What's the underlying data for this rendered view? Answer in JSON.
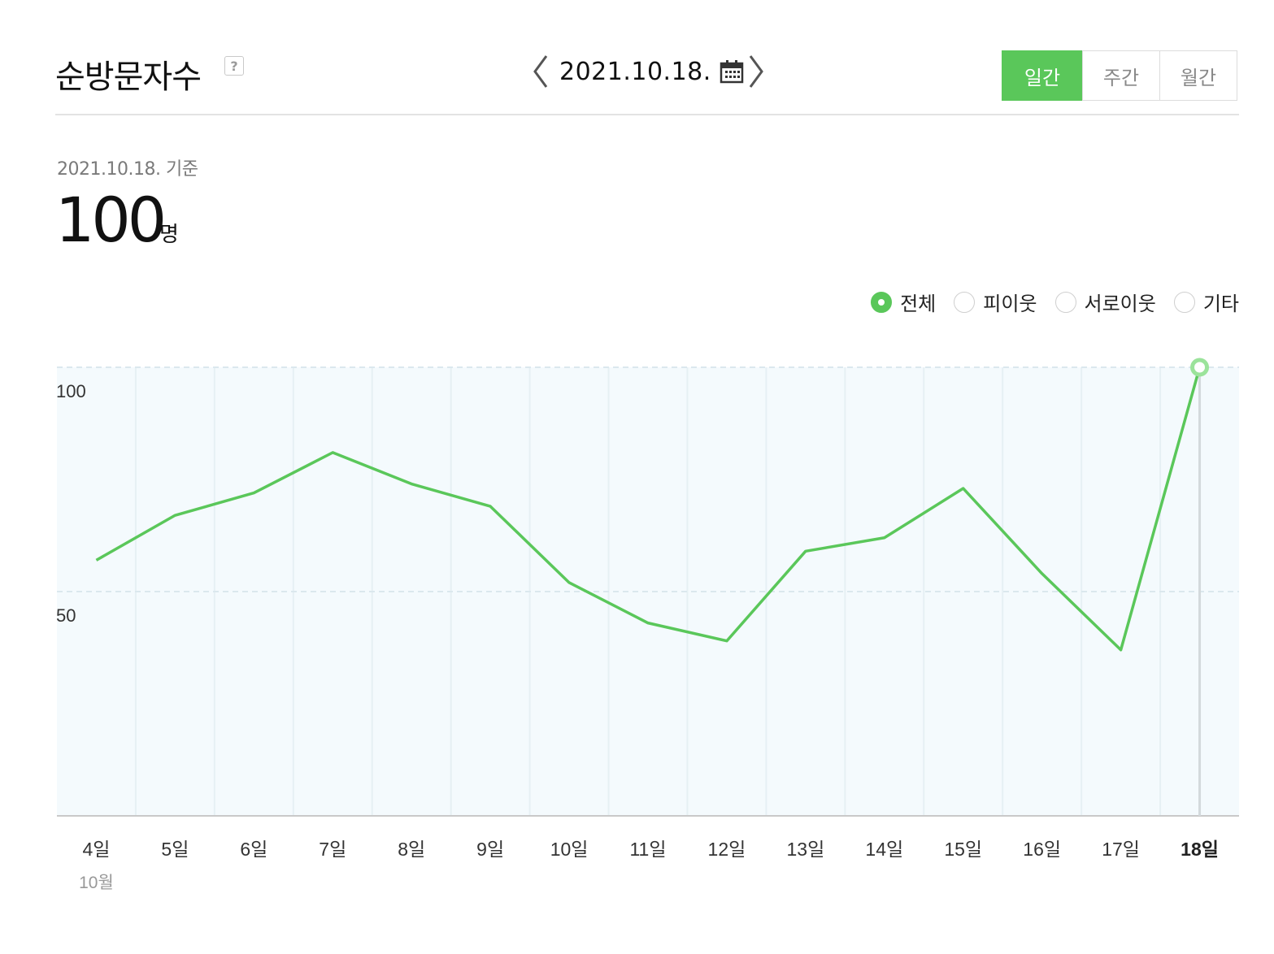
{
  "header": {
    "title": "순방문자수",
    "help_label": "?",
    "date": "2021.10.18.",
    "periods": [
      {
        "label": "일간",
        "active": true
      },
      {
        "label": "주간",
        "active": false
      },
      {
        "label": "월간",
        "active": false
      }
    ]
  },
  "summary": {
    "basis": "2021.10.18. 기준",
    "value": "100",
    "unit": "명"
  },
  "filters": [
    {
      "label": "전체",
      "selected": true
    },
    {
      "label": "피이웃",
      "selected": false
    },
    {
      "label": "서로이웃",
      "selected": false
    },
    {
      "label": "기타",
      "selected": false
    }
  ],
  "colors": {
    "accent": "#5ac75a",
    "line": "#5ac75a",
    "plot_bg": "#f4fafd",
    "grid": "#dbe8ee"
  },
  "chart_data": {
    "type": "line",
    "categories": [
      "4일",
      "5일",
      "6일",
      "7일",
      "8일",
      "9일",
      "10일",
      "11일",
      "12일",
      "13일",
      "14일",
      "15일",
      "16일",
      "17일",
      "18일"
    ],
    "month_label": "10월",
    "series": [
      {
        "values": [
          57,
          67,
          72,
          81,
          74,
          69,
          52,
          43,
          39,
          59,
          62,
          73,
          54,
          37,
          100
        ]
      }
    ],
    "yticks": [
      50,
      100
    ],
    "ylim": [
      0,
      100
    ],
    "highlight_index": 14,
    "grid": true
  }
}
